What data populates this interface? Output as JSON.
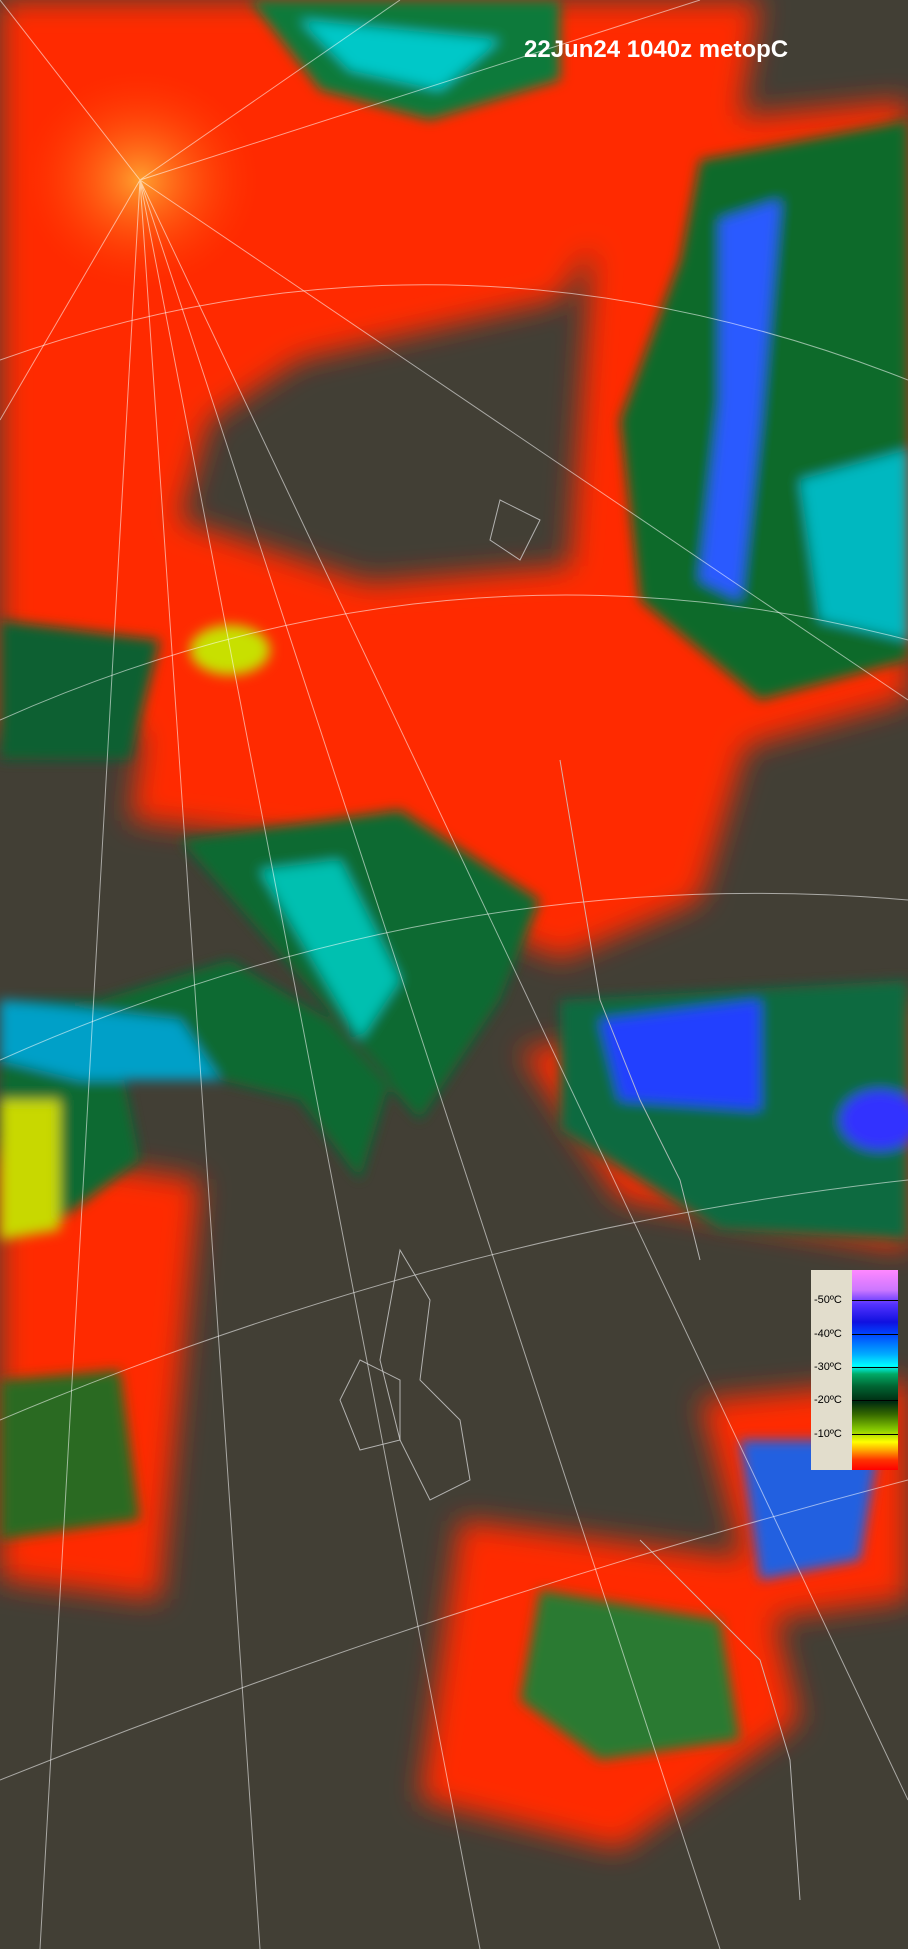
{
  "title": "22Jun24 1040z metopC",
  "legend": {
    "unit": "°C",
    "labels": [
      "-50ºC",
      "-40ºC",
      "-30ºC",
      "-20ºC",
      "-10ºC"
    ],
    "gradient_colors": [
      "#ff88ff",
      "#1010e0",
      "#00ffff",
      "#006633",
      "#002a10",
      "#ffff00",
      "#ff0000"
    ]
  },
  "colors": {
    "background": "#423f35",
    "warm_cloud": "#ff2a00",
    "coastline": "#cfcfcf",
    "graticule": "#ffffff"
  }
}
